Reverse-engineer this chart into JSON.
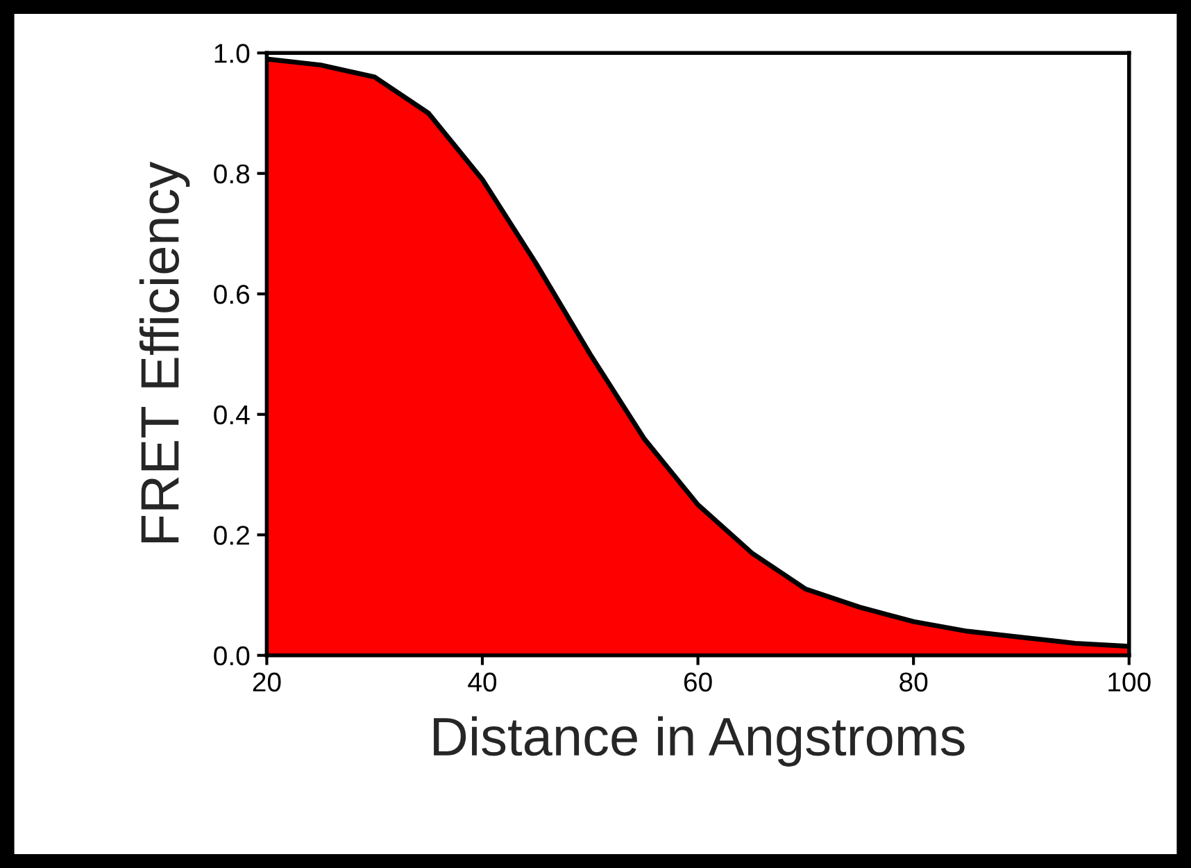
{
  "chart_data": {
    "type": "area",
    "xlabel": "Distance in Angstroms",
    "ylabel": "FRET Efficiency",
    "x": [
      20,
      25,
      30,
      35,
      40,
      45,
      50,
      55,
      60,
      65,
      70,
      75,
      80,
      85,
      90,
      95,
      100
    ],
    "series": [
      {
        "color": "#ff0000",
        "values": [
          0.99,
          0.98,
          0.96,
          0.9,
          0.79,
          0.65,
          0.5,
          0.36,
          0.25,
          0.17,
          0.11,
          0.08,
          0.056,
          0.04,
          0.03,
          0.02,
          0.015
        ]
      }
    ],
    "xlim": [
      20,
      100
    ],
    "ylim": [
      0,
      1
    ],
    "xticks": [
      20,
      40,
      60,
      80,
      100
    ],
    "yticks": [
      {
        "value": 0,
        "label": "0.0"
      },
      {
        "value": 0.2,
        "label": "0.2"
      },
      {
        "value": 0.4,
        "label": "0.4"
      },
      {
        "value": 0.6,
        "label": "0.6"
      },
      {
        "value": 0.8,
        "label": "0.8"
      },
      {
        "value": 1,
        "label": "1.0"
      }
    ],
    "grid": false,
    "legend": false
  }
}
